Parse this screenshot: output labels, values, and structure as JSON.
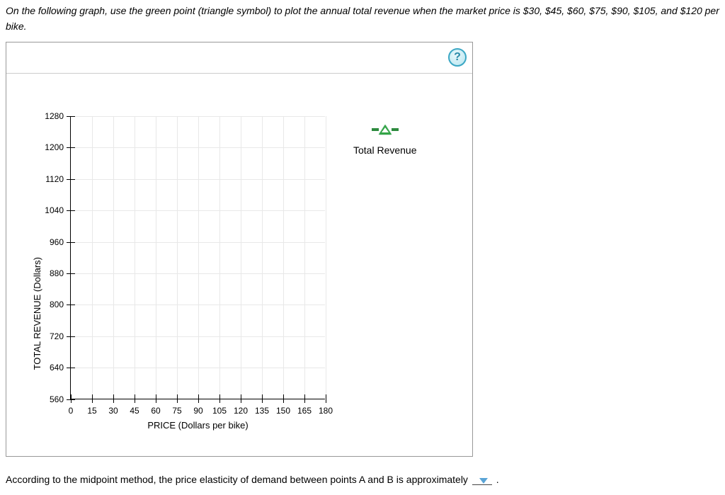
{
  "instructions": "On the following graph, use the green point (triangle symbol) to plot the annual total revenue when the market price is $30, $45, $60, $75, $90, $105, and $120 per bike.",
  "help_label": "?",
  "chart": {
    "type": "scatter",
    "x_axis_title": "PRICE (Dollars per bike)",
    "y_axis_title": "TOTAL REVENUE (Dollars)",
    "xlim": [
      0,
      180
    ],
    "ylim": [
      560,
      1280
    ],
    "x_ticks": [
      0,
      15,
      30,
      45,
      60,
      75,
      90,
      105,
      120,
      135,
      150,
      165,
      180
    ],
    "y_ticks": [
      560,
      640,
      720,
      800,
      880,
      960,
      1040,
      1120,
      1200,
      1280
    ],
    "grid_color": "#e8e8e8",
    "axis_color": "#000000",
    "background_color": "#ffffff",
    "tick_fontsize": 12,
    "axis_title_fontsize": 13,
    "marker": {
      "shape": "triangle",
      "fill_color": "#34a446",
      "stroke_color": "#0b6b1e",
      "connector_color": "#2e8b3f"
    }
  },
  "legend": {
    "label": "Total Revenue"
  },
  "bottom_question_prefix": "According to the midpoint method, the price elasticity of demand between points A and B is approximately",
  "bottom_question_suffix": ".",
  "dropdown_selected": ""
}
